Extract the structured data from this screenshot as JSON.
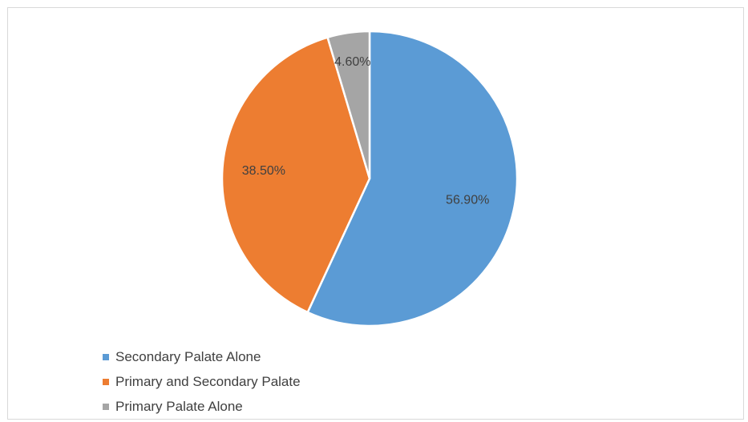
{
  "chart_data": {
    "type": "pie",
    "title": "",
    "categories": [
      "Secondary Palate Alone",
      "Primary and Secondary Palate",
      "Primary Palate Alone"
    ],
    "values": [
      56.9,
      38.5,
      4.6
    ],
    "data_labels": [
      "56.90%",
      "38.50%",
      "4.60%"
    ],
    "colors": [
      "#5b9bd5",
      "#ed7d31",
      "#a5a5a5"
    ],
    "start_angle": "12 o'clock, clockwise",
    "legend_position": "bottom-left"
  }
}
